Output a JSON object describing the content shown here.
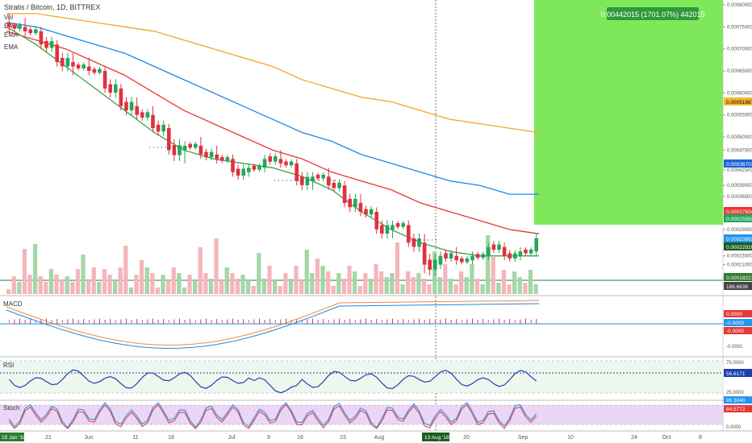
{
  "header": {
    "title": "Stratis / Bitcoin, 1D, BITTREX",
    "studies": [
      "Vol",
      "EMA",
      "EMA",
      "EMA"
    ]
  },
  "projection": {
    "label": "0.00442015 (1701.07%) 442015",
    "color": "#7ee85a"
  },
  "price_axis": {
    "ticks": [
      "0.00080000",
      "0.00075000",
      "0.00070000",
      "0.00065000",
      "0.00060000",
      "0.00055000",
      "0.00050000",
      "0.00047000",
      "0.00042500",
      "0.00039000",
      "0.00036500",
      "0.00032000",
      "0.00029000",
      "0.00026000",
      "0.00023000",
      "0.00021000",
      "0.00018000"
    ],
    "badges": [
      {
        "text": "0.00051667",
        "bg": "#f7b731",
        "fg": "#000000"
      },
      {
        "text": "0.00036703",
        "bg": "#1e63d6",
        "fg": "#ffffff"
      },
      {
        "text": "0.00027934",
        "bg": "#e53935",
        "fg": "#ffffff"
      },
      {
        "text": "0.00025593",
        "bg": "#26a65b",
        "fg": "#ffffff"
      },
      {
        "text": "0.00023892",
        "bg": "#2196f3",
        "fg": "#ffffff"
      },
      {
        "text": "0.00022920",
        "bg": "#1b5e20",
        "fg": "#ffffff"
      },
      {
        "text": "0.00018221",
        "bg": "#2e7d32",
        "fg": "#ffffff"
      },
      {
        "text": "188.663K",
        "bg": "#444444",
        "fg": "#ffffff"
      }
    ]
  },
  "macd": {
    "label": "MACD",
    "ticks": [
      "0.0000",
      "-0.0001"
    ],
    "badges": [
      {
        "text": "0.0000",
        "bg": "#e53935",
        "fg": "#ffffff"
      },
      {
        "text": "-0.0000",
        "bg": "#2196f3",
        "fg": "#ffffff"
      },
      {
        "text": "-0.0000",
        "bg": "#e53935",
        "fg": "#ffffff"
      }
    ]
  },
  "rsi": {
    "label": "RSI",
    "ticks": [
      "75.0000",
      "25.0000"
    ],
    "badge": {
      "text": "56.6171",
      "bg": "#1e40af",
      "fg": "#ffffff"
    }
  },
  "stoch": {
    "label": "Stoch",
    "ticks": [
      "0.0000"
    ],
    "badges": [
      {
        "text": "96.3040",
        "bg": "#2196f3",
        "fg": "#ffffff"
      },
      {
        "text": "84.5772",
        "bg": "#e53935",
        "fg": "#ffffff"
      }
    ]
  },
  "time_axis": {
    "ticks": [
      "21",
      "Jun",
      "11",
      "18",
      "Jul",
      "9",
      "16",
      "23",
      "Aug",
      "20",
      "Sep",
      "10",
      "24",
      "Oct",
      "8"
    ],
    "start_badge": "15 Jan '18",
    "cursor_badge": "13 Aug '18"
  },
  "chart_data": {
    "type": "candlestick",
    "title": "Stratis / Bitcoin, 1D, BITTREX",
    "price_range": [
      0.00018,
      0.0008
    ],
    "candles_approx": [
      {
        "o": 0.00076,
        "h": 0.00078,
        "l": 0.00074,
        "c": 0.00075
      },
      {
        "o": 0.00075,
        "h": 0.00077,
        "l": 0.00073,
        "c": 0.00074
      },
      {
        "o": 0.00074,
        "h": 0.00075,
        "l": 0.0007,
        "c": 0.00071
      },
      {
        "o": 0.00071,
        "h": 0.00072,
        "l": 0.00066,
        "c": 0.00067
      },
      {
        "o": 0.00067,
        "h": 0.00069,
        "l": 0.00064,
        "c": 0.00066
      },
      {
        "o": 0.00066,
        "h": 0.00068,
        "l": 0.00064,
        "c": 0.00065
      },
      {
        "o": 0.00065,
        "h": 0.00066,
        "l": 0.0006,
        "c": 0.00061
      },
      {
        "o": 0.00061,
        "h": 0.00062,
        "l": 0.00056,
        "c": 0.00057
      },
      {
        "o": 0.00057,
        "h": 0.00059,
        "l": 0.00054,
        "c": 0.00055
      },
      {
        "o": 0.00055,
        "h": 0.00057,
        "l": 0.00051,
        "c": 0.00052
      },
      {
        "o": 0.00052,
        "h": 0.00053,
        "l": 0.00046,
        "c": 0.00047
      },
      {
        "o": 0.00047,
        "h": 0.00049,
        "l": 0.00044,
        "c": 0.00048
      },
      {
        "o": 0.00048,
        "h": 0.0005,
        "l": 0.00045,
        "c": 0.00046
      },
      {
        "o": 0.00046,
        "h": 0.00048,
        "l": 0.00044,
        "c": 0.00045
      },
      {
        "o": 0.00045,
        "h": 0.00046,
        "l": 0.00041,
        "c": 0.00042
      },
      {
        "o": 0.00042,
        "h": 0.00044,
        "l": 0.00041,
        "c": 0.00043
      },
      {
        "o": 0.00043,
        "h": 0.00046,
        "l": 0.00042,
        "c": 0.00045
      },
      {
        "o": 0.00045,
        "h": 0.00047,
        "l": 0.00043,
        "c": 0.00044
      },
      {
        "o": 0.00044,
        "h": 0.00045,
        "l": 0.00039,
        "c": 0.0004
      },
      {
        "o": 0.0004,
        "h": 0.00042,
        "l": 0.00038,
        "c": 0.00041
      },
      {
        "o": 0.00041,
        "h": 0.00043,
        "l": 0.00038,
        "c": 0.00039
      },
      {
        "o": 0.00039,
        "h": 0.0004,
        "l": 0.00034,
        "c": 0.00035
      },
      {
        "o": 0.00035,
        "h": 0.00037,
        "l": 0.00032,
        "c": 0.00033
      },
      {
        "o": 0.00033,
        "h": 0.00034,
        "l": 0.00028,
        "c": 0.00029
      },
      {
        "o": 0.00029,
        "h": 0.00031,
        "l": 0.00027,
        "c": 0.0003
      },
      {
        "o": 0.0003,
        "h": 0.00031,
        "l": 0.00025,
        "c": 0.00026
      },
      {
        "o": 0.00026,
        "h": 0.00028,
        "l": 0.00019,
        "c": 0.00021
      },
      {
        "o": 0.00021,
        "h": 0.00024,
        "l": 0.0002,
        "c": 0.00023
      },
      {
        "o": 0.00023,
        "h": 0.00025,
        "l": 0.00021,
        "c": 0.00022
      },
      {
        "o": 0.00022,
        "h": 0.00024,
        "l": 0.00021,
        "c": 0.00023
      },
      {
        "o": 0.00023,
        "h": 0.00026,
        "l": 0.00022,
        "c": 0.00025
      },
      {
        "o": 0.00025,
        "h": 0.00026,
        "l": 0.00022,
        "c": 0.00023
      },
      {
        "o": 0.00023,
        "h": 0.00025,
        "l": 0.00022,
        "c": 0.00024
      },
      {
        "o": 0.00024,
        "h": 0.00028,
        "l": 0.00023,
        "c": 0.00027
      }
    ],
    "series": [
      {
        "values": [
          0.00078,
          0.00078,
          0.00077,
          0.00076,
          0.00075,
          0.00074,
          0.00072,
          0.0007,
          0.00068,
          0.00066,
          0.00063,
          0.00061,
          0.00059,
          0.00058,
          0.00056,
          0.00054,
          0.00053,
          0.00052,
          0.00051
        ],
        "color": "#f5a623"
      },
      {
        "values": [
          0.00076,
          0.00075,
          0.00073,
          0.00071,
          0.00069,
          0.00066,
          0.00063,
          0.0006,
          0.00057,
          0.00054,
          0.00051,
          0.00049,
          0.00046,
          0.00044,
          0.00042,
          0.0004,
          0.00039,
          0.00037,
          0.00037
        ],
        "color": "#1e88e5"
      },
      {
        "values": [
          0.00074,
          0.00072,
          0.0007,
          0.00067,
          0.00064,
          0.0006,
          0.00056,
          0.00053,
          0.0005,
          0.00047,
          0.00045,
          0.00042,
          0.0004,
          0.00038,
          0.00035,
          0.00033,
          0.00031,
          0.00029,
          0.00028
        ],
        "color": "#e53935"
      },
      {
        "values": [
          0.00075,
          0.00071,
          0.00066,
          0.00061,
          0.00056,
          0.00051,
          0.00047,
          0.00045,
          0.00044,
          0.00043,
          0.00041,
          0.00038,
          0.00033,
          0.00029,
          0.00026,
          0.00024,
          0.00023,
          0.00023,
          0.00023
        ],
        "color": "#43a047"
      }
    ]
  }
}
